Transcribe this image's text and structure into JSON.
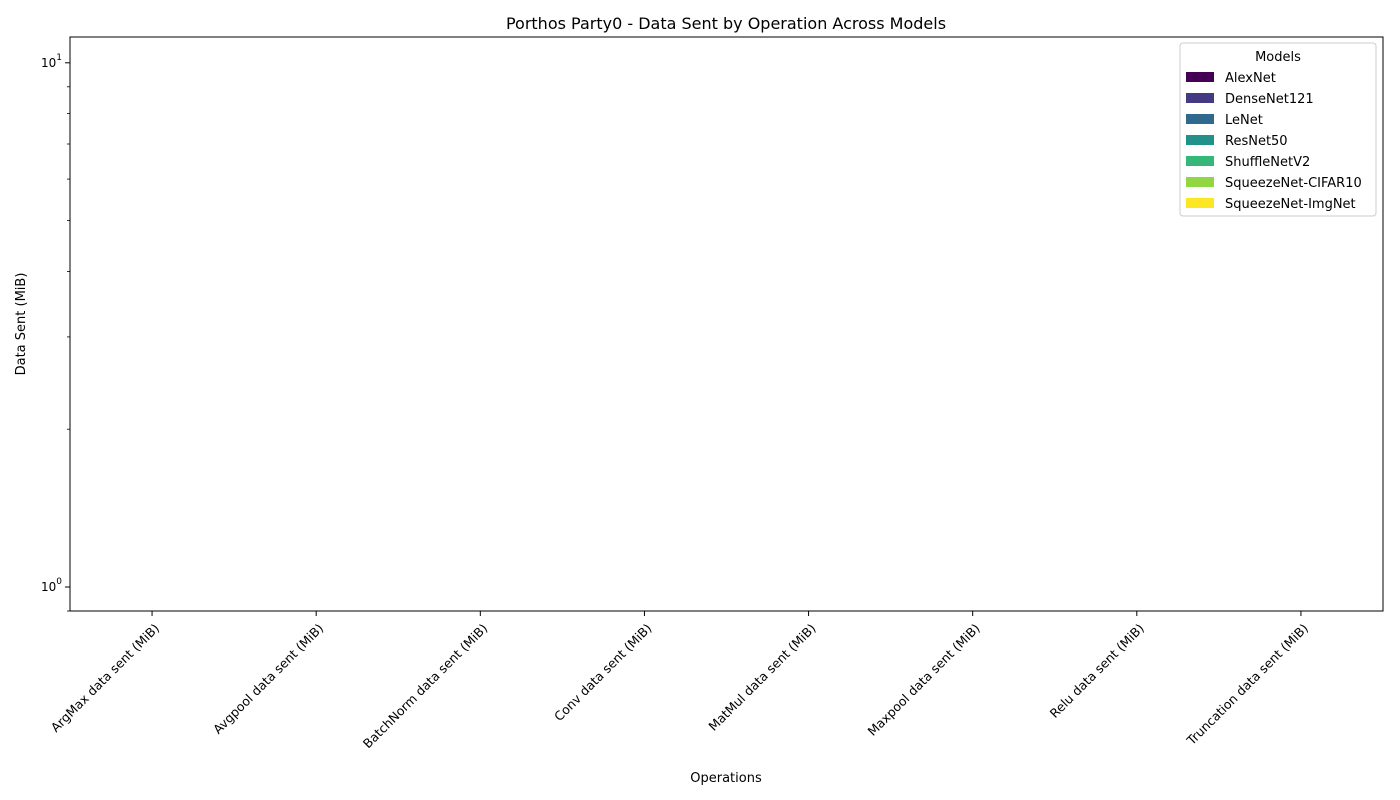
{
  "chart_data": {
    "type": "bar",
    "title": "Porthos Party0 - Data Sent by Operation Across Models",
    "xlabel": "Operations",
    "ylabel": "Data Sent (MiB)",
    "yscale": "log",
    "ylim": [
      0.9,
      11.2
    ],
    "yticks": [
      {
        "value": 1,
        "base": "10",
        "exp": "0"
      },
      {
        "value": 10,
        "base": "10",
        "exp": "1"
      }
    ],
    "categories": [
      "ArgMax data sent (MiB)",
      "Avgpool data sent (MiB)",
      "BatchNorm data sent (MiB)",
      "Conv data sent (MiB)",
      "MatMul data sent (MiB)",
      "Maxpool data sent (MiB)",
      "Relu data sent (MiB)",
      "Truncation data sent (MiB)"
    ],
    "legend": {
      "title": "Models",
      "position": "top-right"
    },
    "series": [
      {
        "name": "AlexNet",
        "color": "#440154",
        "values": [
          null,
          null,
          null,
          null,
          null,
          null,
          null,
          null
        ]
      },
      {
        "name": "DenseNet121",
        "color": "#443983",
        "values": [
          null,
          null,
          null,
          null,
          null,
          null,
          null,
          null
        ]
      },
      {
        "name": "LeNet",
        "color": "#31688e",
        "values": [
          null,
          null,
          null,
          null,
          null,
          null,
          null,
          null
        ]
      },
      {
        "name": "ResNet50",
        "color": "#21918c",
        "values": [
          null,
          null,
          null,
          null,
          null,
          null,
          null,
          null
        ]
      },
      {
        "name": "ShuffleNetV2",
        "color": "#35b779",
        "values": [
          null,
          null,
          null,
          null,
          null,
          null,
          null,
          null
        ]
      },
      {
        "name": "SqueezeNet-CIFAR10",
        "color": "#90d743",
        "values": [
          null,
          null,
          null,
          null,
          null,
          null,
          null,
          null
        ]
      },
      {
        "name": "SqueezeNet-ImgNet",
        "color": "#fde725",
        "values": [
          null,
          null,
          null,
          null,
          null,
          null,
          null,
          null
        ]
      }
    ],
    "grid": false
  }
}
